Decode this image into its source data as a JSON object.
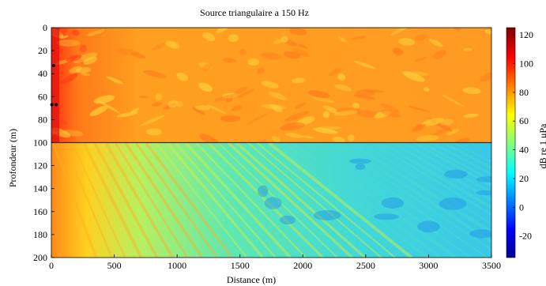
{
  "chart_data": {
    "type": "heatmap",
    "title": "Source triangulaire a 150 Hz",
    "xlabel": "Distance (m)",
    "ylabel": "Profondeur (m)",
    "colorbar_label": "dB re 1 μPa",
    "xlim": [
      0,
      3500
    ],
    "ylim": [
      0,
      200
    ],
    "y_reversed": true,
    "clim": [
      -35,
      125
    ],
    "x_ticks": [
      0,
      500,
      1000,
      1500,
      2000,
      2500,
      3000,
      3500
    ],
    "y_ticks": [
      0,
      20,
      40,
      60,
      80,
      100,
      120,
      140,
      160,
      180,
      200
    ],
    "colorbar_ticks": [
      -20,
      0,
      20,
      40,
      60,
      80,
      100,
      120
    ],
    "interface_depth": 100,
    "colormap": "jet",
    "source_points": [
      {
        "x": 18,
        "y": 33
      },
      {
        "x": 4,
        "y": 67
      },
      {
        "x": 38,
        "y": 67
      }
    ],
    "colors": {
      "water_level": "#ff9a20",
      "sediment_level": "#39d0d6",
      "interface_line": "#303030"
    }
  }
}
